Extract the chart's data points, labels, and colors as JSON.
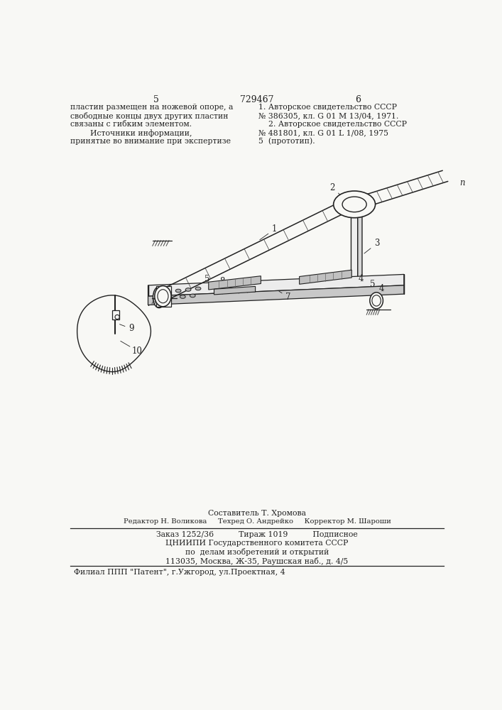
{
  "page_number_left": "5",
  "page_number_center": "729467",
  "page_number_right": "6",
  "top_left_text": [
    "пластин размещен на ножевой опоре, а",
    "свободные концы двух других пластин",
    "связаны с гибким элементом.",
    "        Источники информации,",
    "принятые во внимание при экспертизе"
  ],
  "top_right_text": [
    "1. Авторское свидетельство СССР",
    "№ 386305, кл. G 01 M 13/04, 1971.",
    "    2. Авторское свидетельство СССР",
    "№ 481801, кл. G 01 L 1/08, 1975",
    "5  (прототип)."
  ],
  "bottom_line1": "Составитель Т. Хромова",
  "bottom_line2": "Редактор Н. Воликова     Техред О. Андрейко     Корректор М. Шароши",
  "bottom_line3": "Заказ 1252/36          Тираж 1019          Подписное",
  "bottom_line4": "ЦНИИПИ Государственного комитета СССР",
  "bottom_line5": "по  делам изобретений и открытий",
  "bottom_line6": "113035, Москва, Ж-35, Раушская наб., д. 4/5",
  "bottom_line7": "Филиал ППП \"Патент\", г.Ужгород, ул.Проектная, 4",
  "bg_color": "#f8f8f5",
  "line_color": "#222222",
  "text_color": "#222222"
}
